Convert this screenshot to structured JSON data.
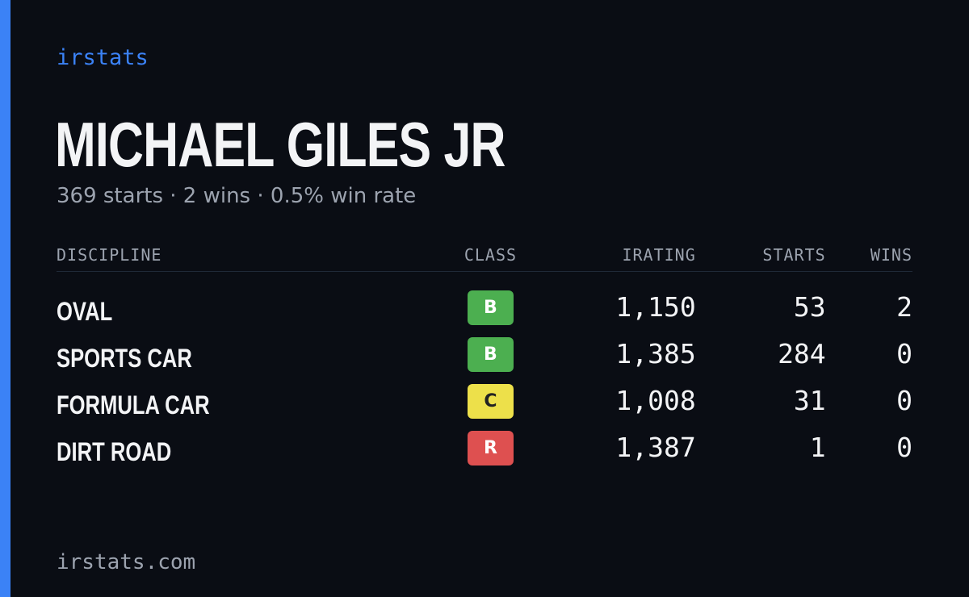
{
  "brand": "irstats",
  "name": "MICHAEL GILES JR",
  "summary": "369 starts · 2 wins · 0.5% win rate",
  "table": {
    "headers": [
      "DISCIPLINE",
      "CLASS",
      "IRATING",
      "STARTS",
      "WINS"
    ],
    "rows": [
      [
        "OVAL",
        "B",
        "1,150",
        "53",
        "2"
      ],
      [
        "SPORTS CAR",
        "B",
        "1,385",
        "284",
        "0"
      ],
      [
        "FORMULA CAR",
        "C",
        "1,008",
        "31",
        "0"
      ],
      [
        "DIRT ROAD",
        "R",
        "1,387",
        "1",
        "0"
      ]
    ]
  },
  "footer": "irstats.com"
}
